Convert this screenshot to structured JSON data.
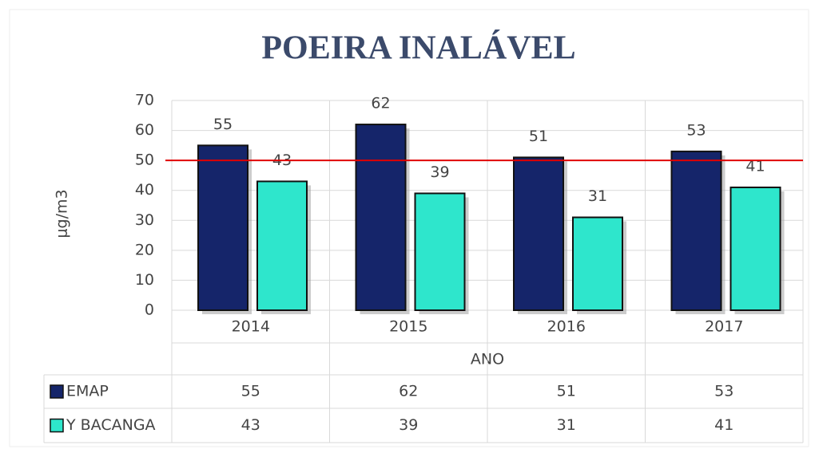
{
  "chart_data": {
    "type": "bar",
    "title": "POEIRA INALÁVEL",
    "y_label": "μg/m3",
    "x_label": "ANO",
    "categories": [
      "2014",
      "2015",
      "2016",
      "2017"
    ],
    "series": [
      {
        "name": "EMAP",
        "color": "#15256a",
        "values": [
          55,
          62,
          51,
          53
        ]
      },
      {
        "name": "Y BACANGA",
        "color": "#2ee6cc",
        "values": [
          43,
          39,
          31,
          41
        ]
      }
    ],
    "reference_line": {
      "value": 50,
      "color": "#e00000"
    },
    "ylim": [
      0,
      70
    ],
    "yticks": [
      0,
      10,
      20,
      30,
      40,
      50,
      60,
      70
    ],
    "grid": true,
    "data_table": true
  }
}
